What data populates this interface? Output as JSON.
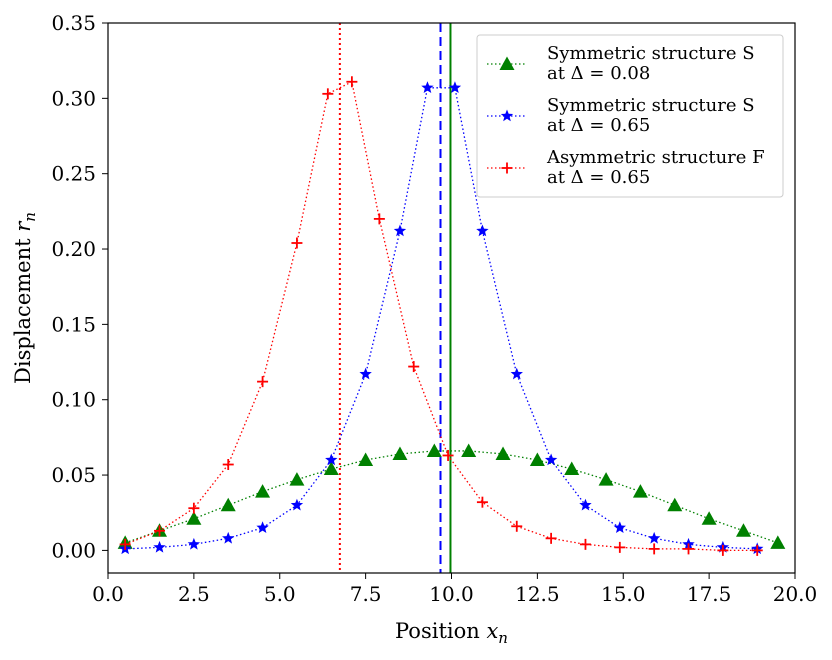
{
  "chart_data": {
    "type": "line",
    "title": "",
    "xlabel": "Position $x_n$",
    "ylabel": "Displacement $r_n$",
    "xlabel_parts": {
      "text": "Position ",
      "symbol": "x",
      "subscript": "n"
    },
    "ylabel_parts": {
      "text": "Displacement ",
      "symbol": "r",
      "subscript": "n"
    },
    "xlim": [
      0,
      20
    ],
    "ylim": [
      -0.015,
      0.35
    ],
    "xticks": [
      "0.0",
      "2.5",
      "5.0",
      "7.5",
      "10.0",
      "12.5",
      "15.0",
      "17.5",
      "20.0"
    ],
    "yticks": [
      "0.00",
      "0.05",
      "0.10",
      "0.15",
      "0.20",
      "0.25",
      "0.30",
      "0.35"
    ],
    "grid": false,
    "legend_position": "top-right",
    "series": [
      {
        "name": "Symmetric structure S at Δ = 0.08",
        "legend_line1": "Symmetric structure S",
        "legend_line2": "at Δ = 0.08",
        "color": "#008000",
        "marker": "triangle",
        "linestyle": "dotted",
        "x": [
          0.5,
          1.5,
          2.5,
          3.5,
          4.5,
          5.5,
          6.5,
          7.5,
          8.5,
          9.5,
          10.5,
          11.5,
          12.5,
          13.5,
          14.5,
          15.5,
          16.5,
          17.5,
          18.5,
          19.5
        ],
        "y": [
          0.005,
          0.013,
          0.021,
          0.03,
          0.039,
          0.047,
          0.054,
          0.06,
          0.064,
          0.066,
          0.066,
          0.064,
          0.06,
          0.054,
          0.047,
          0.039,
          0.03,
          0.021,
          0.013,
          0.005
        ]
      },
      {
        "name": "Symmetric structure S at Δ = 0.65",
        "legend_line1": "Symmetric structure S",
        "legend_line2": "at Δ = 0.65",
        "color": "#0000ff",
        "marker": "star",
        "linestyle": "dotted",
        "x": [
          0.5,
          1.5,
          2.5,
          3.5,
          4.5,
          5.5,
          6.5,
          7.5,
          8.5,
          9.3,
          10.1,
          10.9,
          11.9,
          12.9,
          13.9,
          14.9,
          15.9,
          16.9,
          17.9,
          18.9
        ],
        "y": [
          0.001,
          0.002,
          0.004,
          0.008,
          0.015,
          0.03,
          0.06,
          0.117,
          0.212,
          0.307,
          0.307,
          0.212,
          0.117,
          0.06,
          0.03,
          0.015,
          0.008,
          0.004,
          0.002,
          0.001
        ]
      },
      {
        "name": "Asymmetric structure F at Δ = 0.65",
        "legend_line1": "Asymmetric structure F",
        "legend_line2": "at Δ = 0.65",
        "color": "#ff0000",
        "marker": "plus",
        "linestyle": "dotted",
        "x": [
          0.5,
          1.5,
          2.5,
          3.5,
          4.5,
          5.5,
          6.4,
          7.1,
          7.9,
          8.9,
          9.9,
          10.9,
          11.9,
          12.9,
          13.9,
          14.9,
          15.9,
          16.9,
          17.9,
          18.9
        ],
        "y": [
          0.004,
          0.013,
          0.028,
          0.057,
          0.112,
          0.204,
          0.303,
          0.311,
          0.22,
          0.122,
          0.063,
          0.032,
          0.016,
          0.008,
          0.004,
          0.002,
          0.001,
          0.001,
          0.0,
          0.0
        ]
      }
    ],
    "vertical_lines": [
      {
        "name": "green-vline",
        "x": 9.97,
        "color": "#008000",
        "style": "solid"
      },
      {
        "name": "blue-vline",
        "x": 9.68,
        "color": "#0000ff",
        "style": "dashed"
      },
      {
        "name": "red-vline",
        "x": 6.75,
        "color": "#ff0000",
        "style": "dotted"
      }
    ]
  }
}
